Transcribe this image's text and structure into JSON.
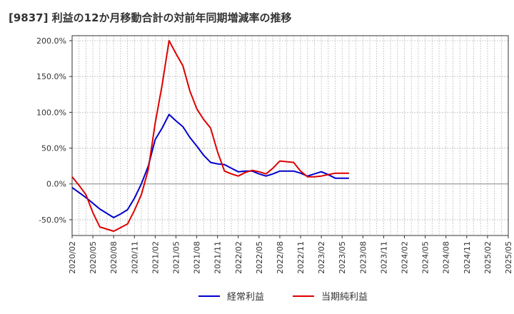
{
  "chart_data": {
    "type": "line",
    "title": "[9837]  利益の12か月移動合計の対前年同期増減率の推移",
    "xlabel": "",
    "ylabel": "",
    "ylim": [
      -72,
      207
    ],
    "y_ticks": [
      200,
      150,
      100,
      50,
      0,
      -50
    ],
    "y_tick_labels": [
      "200.0%",
      "150.0%",
      "100.0%",
      "50.0%",
      "0.0%",
      "-50.0%"
    ],
    "x_tick_labels": [
      "2020/02",
      "2020/05",
      "2020/08",
      "2020/11",
      "2021/02",
      "2021/05",
      "2021/08",
      "2021/11",
      "2022/02",
      "2022/05",
      "2022/08",
      "2022/11",
      "2023/02",
      "2023/05",
      "2023/08",
      "2023/11",
      "2024/02",
      "2024/05",
      "2024/08",
      "2024/11",
      "2025/02",
      "2025/05"
    ],
    "grid": true,
    "legend_position": "bottom",
    "colors": {
      "blue": "#0000cc",
      "red": "#dd0000",
      "grid": "#aaaaaa",
      "axis": "#333333"
    },
    "series": [
      {
        "name": "経常利益",
        "color": "#0000cc",
        "values": [
          -5,
          -12,
          -19,
          -27,
          -35,
          -41,
          -47,
          -42,
          -36,
          -20,
          0,
          25,
          62,
          78,
          97,
          88,
          80,
          65,
          53,
          40,
          30,
          28,
          27,
          22,
          17,
          18,
          18,
          14,
          11,
          14,
          18,
          18,
          18,
          15,
          11,
          14,
          17,
          13,
          8,
          8,
          8
        ]
      },
      {
        "name": "当期純利益",
        "color": "#dd0000",
        "values": [
          10,
          -2,
          -15,
          -40,
          -60,
          -63,
          -66,
          -61,
          -56,
          -37,
          -15,
          20,
          85,
          138,
          200,
          182,
          165,
          130,
          105,
          90,
          78,
          45,
          18,
          14,
          11,
          16,
          19,
          17,
          14,
          22,
          32,
          31,
          30,
          18,
          10,
          10,
          11,
          13,
          15,
          15,
          15
        ]
      }
    ]
  }
}
